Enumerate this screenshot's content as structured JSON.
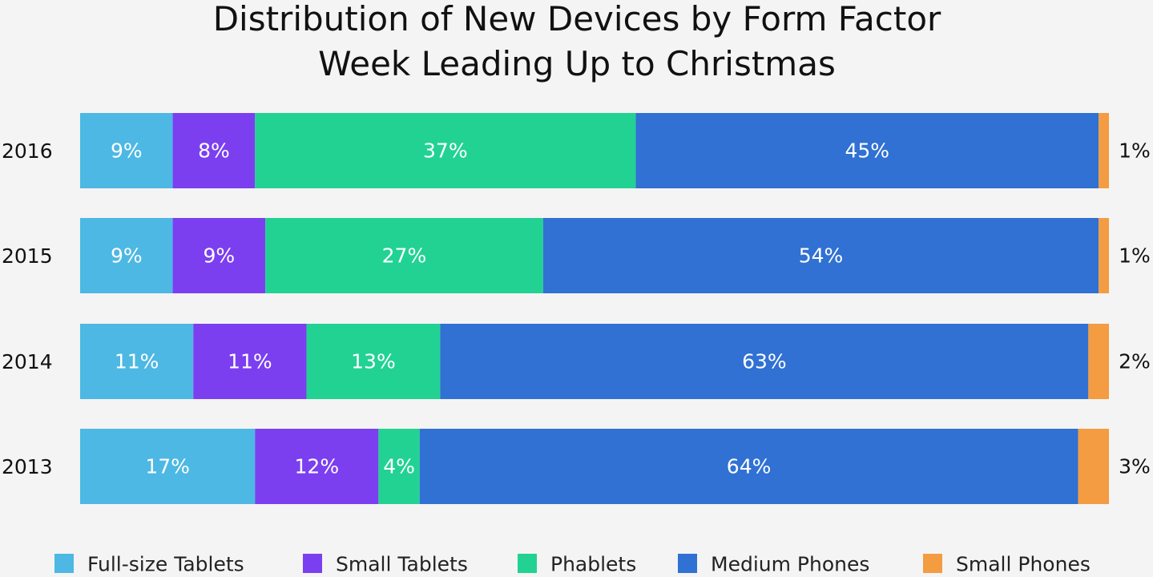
{
  "chart_data": {
    "type": "bar",
    "orientation": "horizontal",
    "stacked": true,
    "title": [
      "Distribution of New Devices by Form Factor",
      "Week Leading Up to Christmas"
    ],
    "categories": [
      "2016",
      "2015",
      "2014",
      "2013"
    ],
    "series": [
      {
        "name": "Full-size Tablets",
        "color": "#4db8e3",
        "values": [
          9,
          9,
          11,
          17
        ]
      },
      {
        "name": "Small Tablets",
        "color": "#7b3ff0",
        "values": [
          8,
          9,
          11,
          12
        ]
      },
      {
        "name": "Phablets",
        "color": "#22d293",
        "values": [
          37,
          27,
          13,
          4
        ]
      },
      {
        "name": "Medium Phones",
        "color": "#3071d3",
        "values": [
          45,
          54,
          63,
          64
        ]
      },
      {
        "name": "Small Phones",
        "color": "#f49c42",
        "values": [
          1,
          1,
          2,
          3
        ]
      }
    ],
    "value_suffix": "%",
    "xlim": [
      0,
      100
    ],
    "grid": false,
    "legend": "bottom"
  }
}
